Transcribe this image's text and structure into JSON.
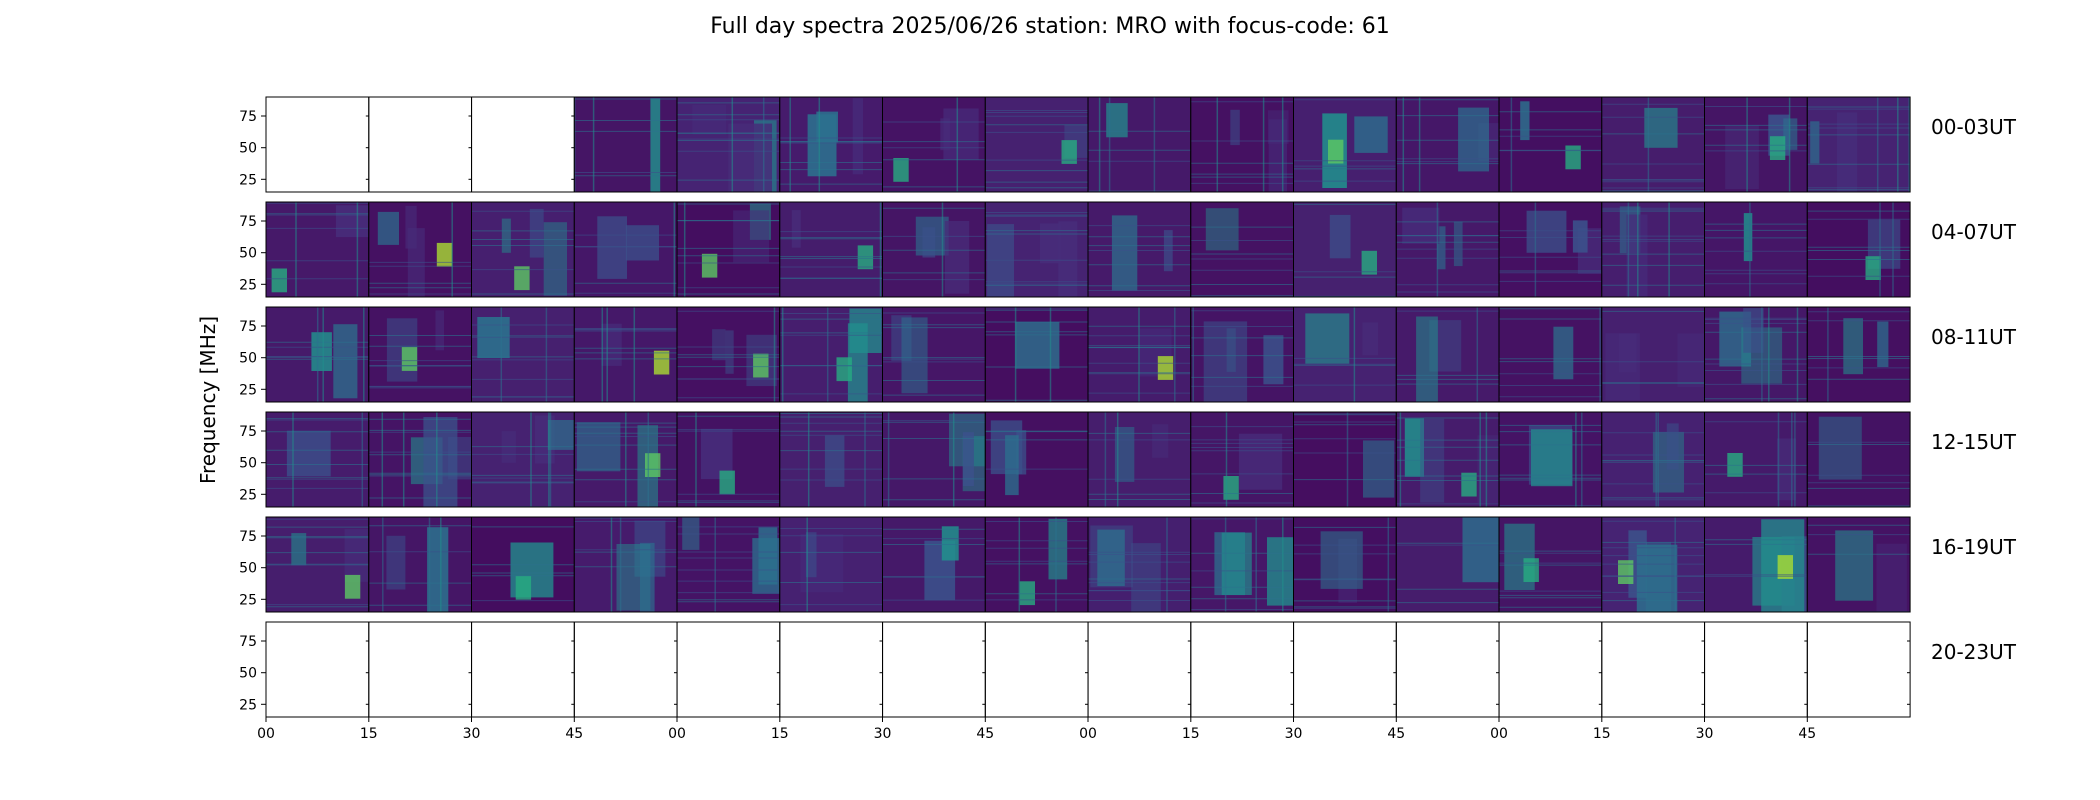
{
  "chart_data": {
    "type": "heatmap",
    "title": "Full day spectra 2025/06/26 station: MRO with focus-code: 61",
    "ylabel": "Frequency [MHz]",
    "xlabel": "",
    "y_ticks": [
      "25",
      "50",
      "75"
    ],
    "ylim": [
      15,
      90
    ],
    "x_ticks": [
      "00",
      "15",
      "30",
      "45",
      "00",
      "15",
      "30",
      "45",
      "00",
      "15",
      "30",
      "45",
      "00",
      "15",
      "30",
      "45"
    ],
    "rows": [
      "00-03UT",
      "04-07UT",
      "08-11UT",
      "12-15UT",
      "16-19UT",
      "20-23UT"
    ],
    "panels_per_row": 16,
    "panel_minutes": 15,
    "colormap": [
      "#440154",
      "#472c7a",
      "#3b518b",
      "#2c718e",
      "#21908d",
      "#27ad81",
      "#5cc863",
      "#aadc32",
      "#fde725"
    ],
    "panel_has_data": [
      [
        false,
        false,
        false,
        true,
        true,
        true,
        true,
        true,
        true,
        true,
        true,
        true,
        true,
        true,
        true,
        true
      ],
      [
        true,
        true,
        true,
        true,
        true,
        true,
        true,
        true,
        true,
        true,
        true,
        true,
        true,
        true,
        true,
        true
      ],
      [
        true,
        true,
        true,
        true,
        true,
        true,
        true,
        true,
        true,
        true,
        true,
        true,
        true,
        true,
        true,
        true
      ],
      [
        true,
        true,
        true,
        true,
        true,
        true,
        true,
        true,
        true,
        true,
        true,
        true,
        true,
        true,
        true,
        true
      ],
      [
        true,
        true,
        true,
        true,
        true,
        true,
        true,
        true,
        true,
        true,
        true,
        true,
        true,
        true,
        true,
        true
      ],
      [
        false,
        false,
        false,
        false,
        false,
        false,
        false,
        false,
        false,
        false,
        false,
        false,
        false,
        false,
        false,
        false
      ]
    ]
  }
}
